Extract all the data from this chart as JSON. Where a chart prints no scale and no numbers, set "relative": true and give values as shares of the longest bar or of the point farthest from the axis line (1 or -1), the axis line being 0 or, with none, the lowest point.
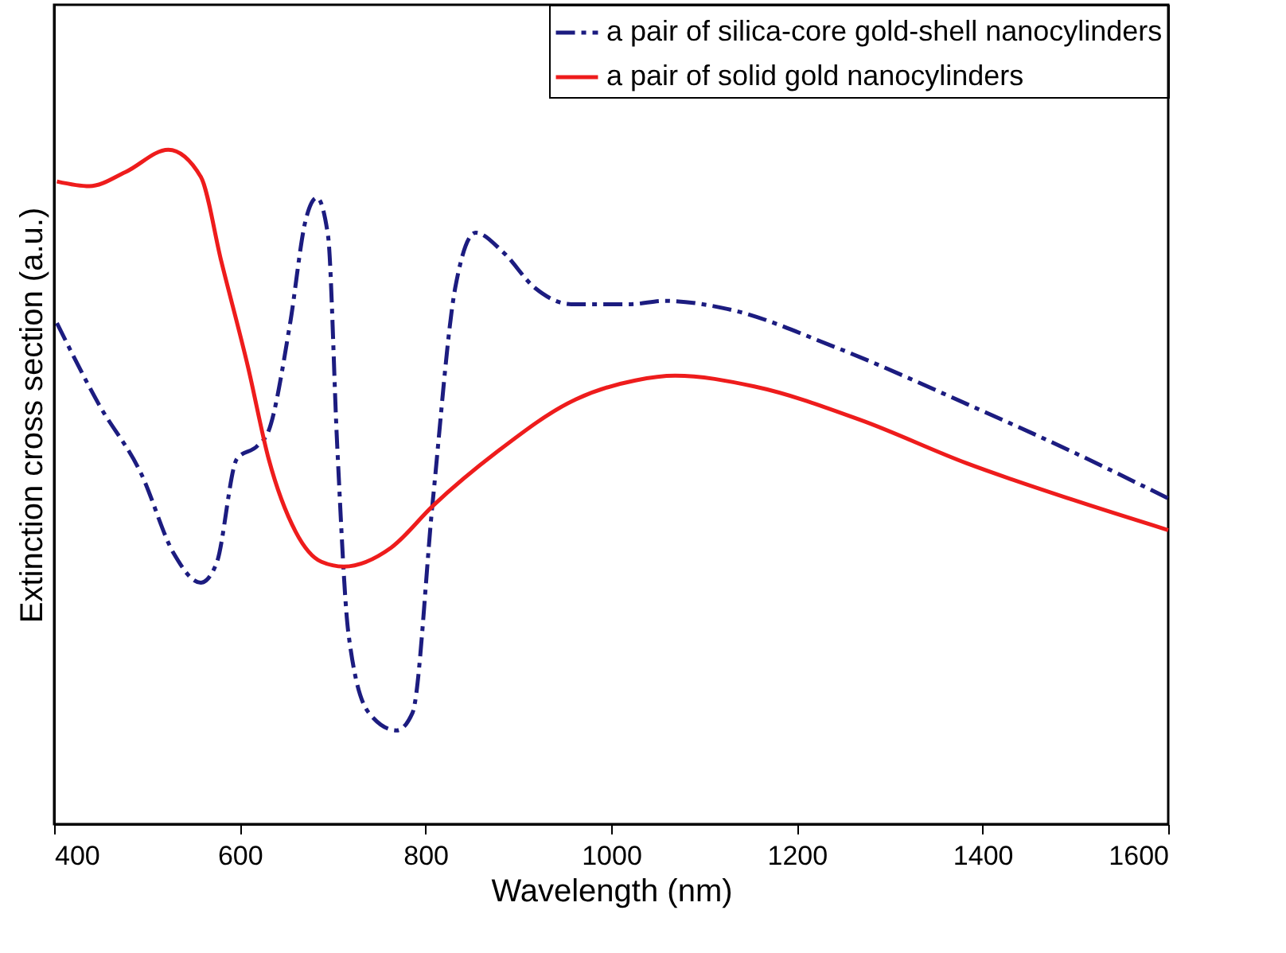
{
  "chart_data": {
    "type": "line",
    "xlabel": "Wavelength (nm)",
    "ylabel": "Extinction cross section (a.u.)",
    "relative": true,
    "xlim": [
      400,
      1600
    ],
    "xticks": [
      400,
      600,
      800,
      1000,
      1200,
      1400,
      1600
    ],
    "grid": false,
    "legend": "top right",
    "marker": "none",
    "series": [
      {
        "name": "a pair of silica-core gold-shell nanocylinders",
        "color": "#1c1c80",
        "line_style": "dashed",
        "x": [
          403,
          448,
          494,
          529,
          558,
          575,
          597,
          619,
          631,
          654,
          671,
          683,
          695,
          705,
          717,
          739,
          769,
          786,
          808,
          832,
          854,
          883,
          918,
          957,
          1021,
          1057,
          1125,
          1240,
          1383,
          1497,
          1600
        ],
        "values": [
          0.743,
          0.623,
          0.519,
          0.401,
          0.358,
          0.387,
          0.542,
          0.561,
          0.583,
          0.741,
          0.896,
          0.929,
          0.873,
          0.559,
          0.283,
          0.165,
          0.139,
          0.165,
          0.481,
          0.795,
          0.877,
          0.849,
          0.795,
          0.771,
          0.771,
          0.776,
          0.764,
          0.708,
          0.623,
          0.552,
          0.483
        ]
      },
      {
        "name": "a pair of solid gold  nanocylinders",
        "color": "#ee1c1c",
        "line_style": "solid",
        "x": [
          403,
          438,
          477,
          523,
          558,
          580,
          609,
          631,
          660,
          688,
          712,
          763,
          808,
          877,
          962,
          1026,
          1069,
          1154,
          1269,
          1383,
          1497,
          1600
        ],
        "values": [
          0.953,
          0.946,
          0.967,
          1.0,
          0.96,
          0.835,
          0.677,
          0.542,
          0.434,
          0.389,
          0.382,
          0.41,
          0.472,
          0.552,
          0.63,
          0.658,
          0.665,
          0.649,
          0.599,
          0.535,
          0.481,
          0.436
        ]
      }
    ]
  }
}
